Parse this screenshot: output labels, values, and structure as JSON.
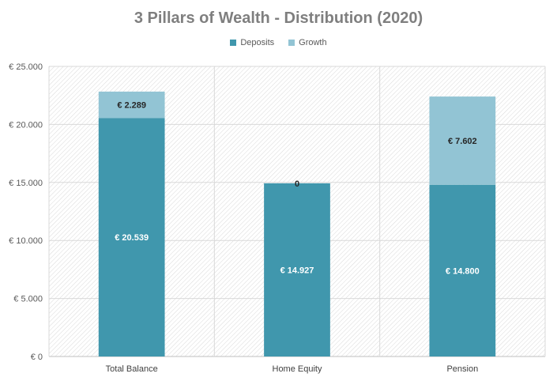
{
  "chart_data": {
    "type": "bar",
    "stacked": true,
    "title": "3 Pillars of Wealth - Distribution (2020)",
    "xlabel": "",
    "ylabel": "",
    "categories": [
      "Total Balance",
      "Home Equity",
      "Pension"
    ],
    "series": [
      {
        "name": "Deposits",
        "color": "#4097ad",
        "values": [
          20539,
          14927,
          14800
        ],
        "labels": [
          "€ 20.539",
          "€ 14.927",
          "€ 14.800"
        ]
      },
      {
        "name": "Growth",
        "color": "#92c4d4",
        "values": [
          2289,
          0,
          7602
        ],
        "labels": [
          "€ 2.289",
          "0",
          "€ 7.602"
        ]
      }
    ],
    "ylim": [
      0,
      25000
    ],
    "yticks": [
      0,
      5000,
      10000,
      15000,
      20000,
      25000
    ],
    "ytick_labels": [
      "€ 0",
      "€ 5.000",
      "€ 10.000",
      "€ 15.000",
      "€ 20.000",
      "€ 25.000"
    ],
    "grid": true,
    "legend_position": "top"
  }
}
